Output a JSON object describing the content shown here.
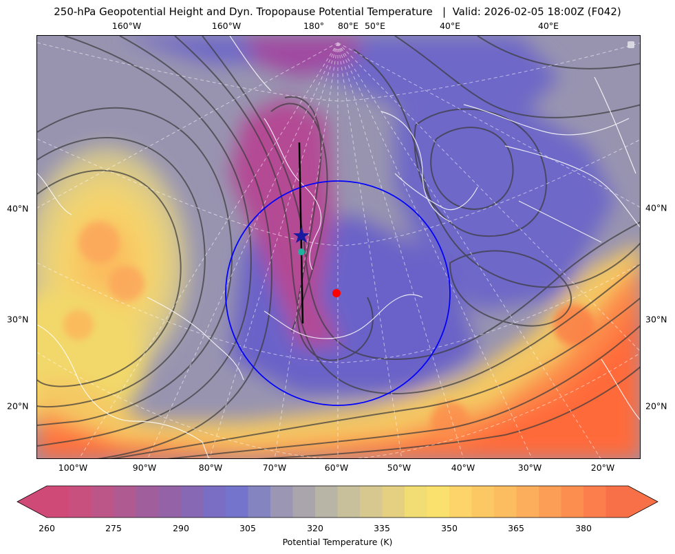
{
  "title": "250-hPa Geopotential Height and Dyn. Tropopause Potential Temperature   |  Valid: 2026-02-05 18:00Z (F042)",
  "map": {
    "top_lon_labels": [
      "160°W",
      "160°W",
      "180°",
      "80°E",
      "50°E",
      "40°E",
      "40°E"
    ],
    "bottom_lon_labels": [
      "100°W",
      "90°W",
      "80°W",
      "70°W",
      "60°W",
      "50°W",
      "40°W",
      "30°W",
      "20°W"
    ],
    "left_lat_labels": [
      "40°N",
      "30°N",
      "20°N"
    ],
    "right_lat_labels": [
      "40°N",
      "30°N",
      "20°N"
    ],
    "colors": {
      "cold": "#c83a78",
      "cool": "#6a64c8",
      "neutral": "#9a96a8",
      "warm": "#f2d86a",
      "hot": "#ff7a3c",
      "coastline": "#ffffff",
      "height_contour": "#3a3a3a",
      "circle": "#0000ff",
      "section_line": "#000000",
      "point_marker": "#ff0000",
      "star_marker": "#1a1aa0",
      "teal_marker": "#20b0a0"
    },
    "annotations": {
      "circle": "blue range ring",
      "cross_section": "black vertical section line",
      "markers": [
        "blue star",
        "teal dot",
        "red dot"
      ]
    }
  },
  "colorbar": {
    "label": "Potential Temperature (K)",
    "ticks": [
      "260",
      "275",
      "290",
      "305",
      "320",
      "335",
      "350",
      "365",
      "380"
    ],
    "range": [
      260,
      390
    ],
    "extend": "both",
    "colors": [
      "#d04a78",
      "#c8507e",
      "#bc5688",
      "#b05a92",
      "#a05e9c",
      "#9462a6",
      "#8668b4",
      "#7a6ec4",
      "#7474cc",
      "#8484c0",
      "#9a96b4",
      "#aaa4ac",
      "#b8b4a6",
      "#c8c09a",
      "#d6c88e",
      "#e4d080",
      "#f2dc74",
      "#fae06c",
      "#fcd46a",
      "#fcc864",
      "#fcbc60",
      "#fcae5c",
      "#fc9e56",
      "#fc8e50",
      "#fc7e4c",
      "#f87048"
    ]
  }
}
